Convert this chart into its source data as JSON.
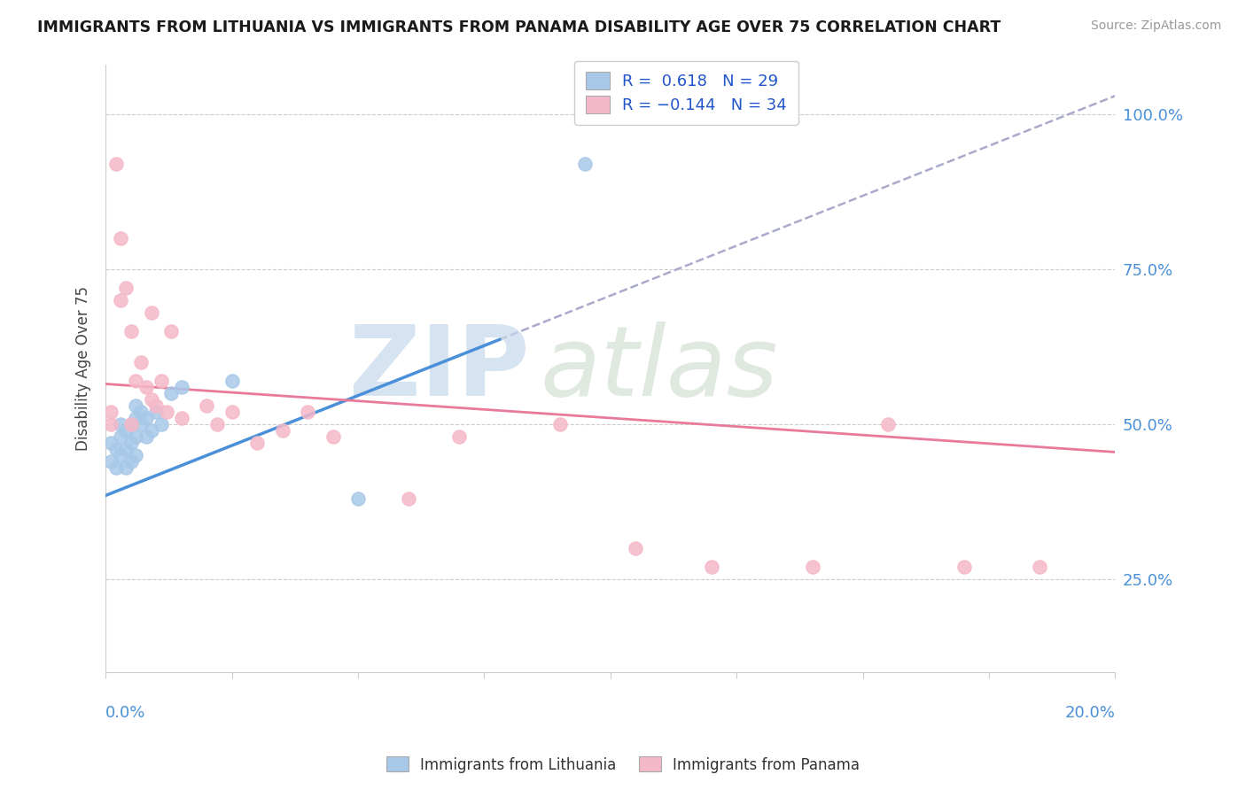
{
  "title": "IMMIGRANTS FROM LITHUANIA VS IMMIGRANTS FROM PANAMA DISABILITY AGE OVER 75 CORRELATION CHART",
  "source": "Source: ZipAtlas.com",
  "ylabel": "Disability Age Over 75",
  "xlim": [
    0.0,
    0.2
  ],
  "ylim": [
    0.1,
    1.08
  ],
  "r_lithuania": 0.618,
  "n_lithuania": 29,
  "r_panama": -0.144,
  "n_panama": 34,
  "color_lithuania": "#a8c8e8",
  "color_panama": "#f5b8c8",
  "color_line_lithuania": "#4a90d9",
  "color_line_panama": "#e87a9a",
  "color_ref_line": "#aaaacc",
  "legend_r_color": "#2255cc",
  "legend_n_color": "#2255cc",
  "line_lith_x0": 0.0,
  "line_lith_y0": 0.385,
  "line_lith_x1": 0.2,
  "line_lith_y1": 1.03,
  "line_lith_solid_end": 0.078,
  "line_pan_x0": 0.0,
  "line_pan_y0": 0.565,
  "line_pan_x1": 0.2,
  "line_pan_y1": 0.455,
  "lithuania_x": [
    0.001,
    0.001,
    0.002,
    0.002,
    0.003,
    0.003,
    0.003,
    0.004,
    0.004,
    0.004,
    0.005,
    0.005,
    0.005,
    0.006,
    0.006,
    0.006,
    0.006,
    0.007,
    0.007,
    0.008,
    0.008,
    0.009,
    0.01,
    0.011,
    0.013,
    0.015,
    0.025,
    0.05,
    0.095
  ],
  "lithuania_y": [
    0.44,
    0.47,
    0.43,
    0.46,
    0.45,
    0.48,
    0.5,
    0.43,
    0.46,
    0.49,
    0.47,
    0.5,
    0.44,
    0.45,
    0.48,
    0.51,
    0.53,
    0.5,
    0.52,
    0.48,
    0.51,
    0.49,
    0.52,
    0.5,
    0.55,
    0.56,
    0.57,
    0.38,
    0.92
  ],
  "panama_x": [
    0.001,
    0.001,
    0.002,
    0.003,
    0.003,
    0.004,
    0.005,
    0.005,
    0.006,
    0.007,
    0.008,
    0.009,
    0.009,
    0.01,
    0.011,
    0.012,
    0.013,
    0.015,
    0.02,
    0.022,
    0.025,
    0.03,
    0.035,
    0.04,
    0.045,
    0.06,
    0.07,
    0.09,
    0.105,
    0.12,
    0.14,
    0.155,
    0.17,
    0.185
  ],
  "panama_y": [
    0.5,
    0.52,
    0.92,
    0.8,
    0.7,
    0.72,
    0.5,
    0.65,
    0.57,
    0.6,
    0.56,
    0.54,
    0.68,
    0.53,
    0.57,
    0.52,
    0.65,
    0.51,
    0.53,
    0.5,
    0.52,
    0.47,
    0.49,
    0.52,
    0.48,
    0.38,
    0.48,
    0.5,
    0.3,
    0.27,
    0.27,
    0.5,
    0.27,
    0.27
  ],
  "ytick_values": [
    0.25,
    0.5,
    0.75,
    1.0
  ],
  "ytick_labels": [
    "25.0%",
    "50.0%",
    "75.0%",
    "100.0%"
  ]
}
